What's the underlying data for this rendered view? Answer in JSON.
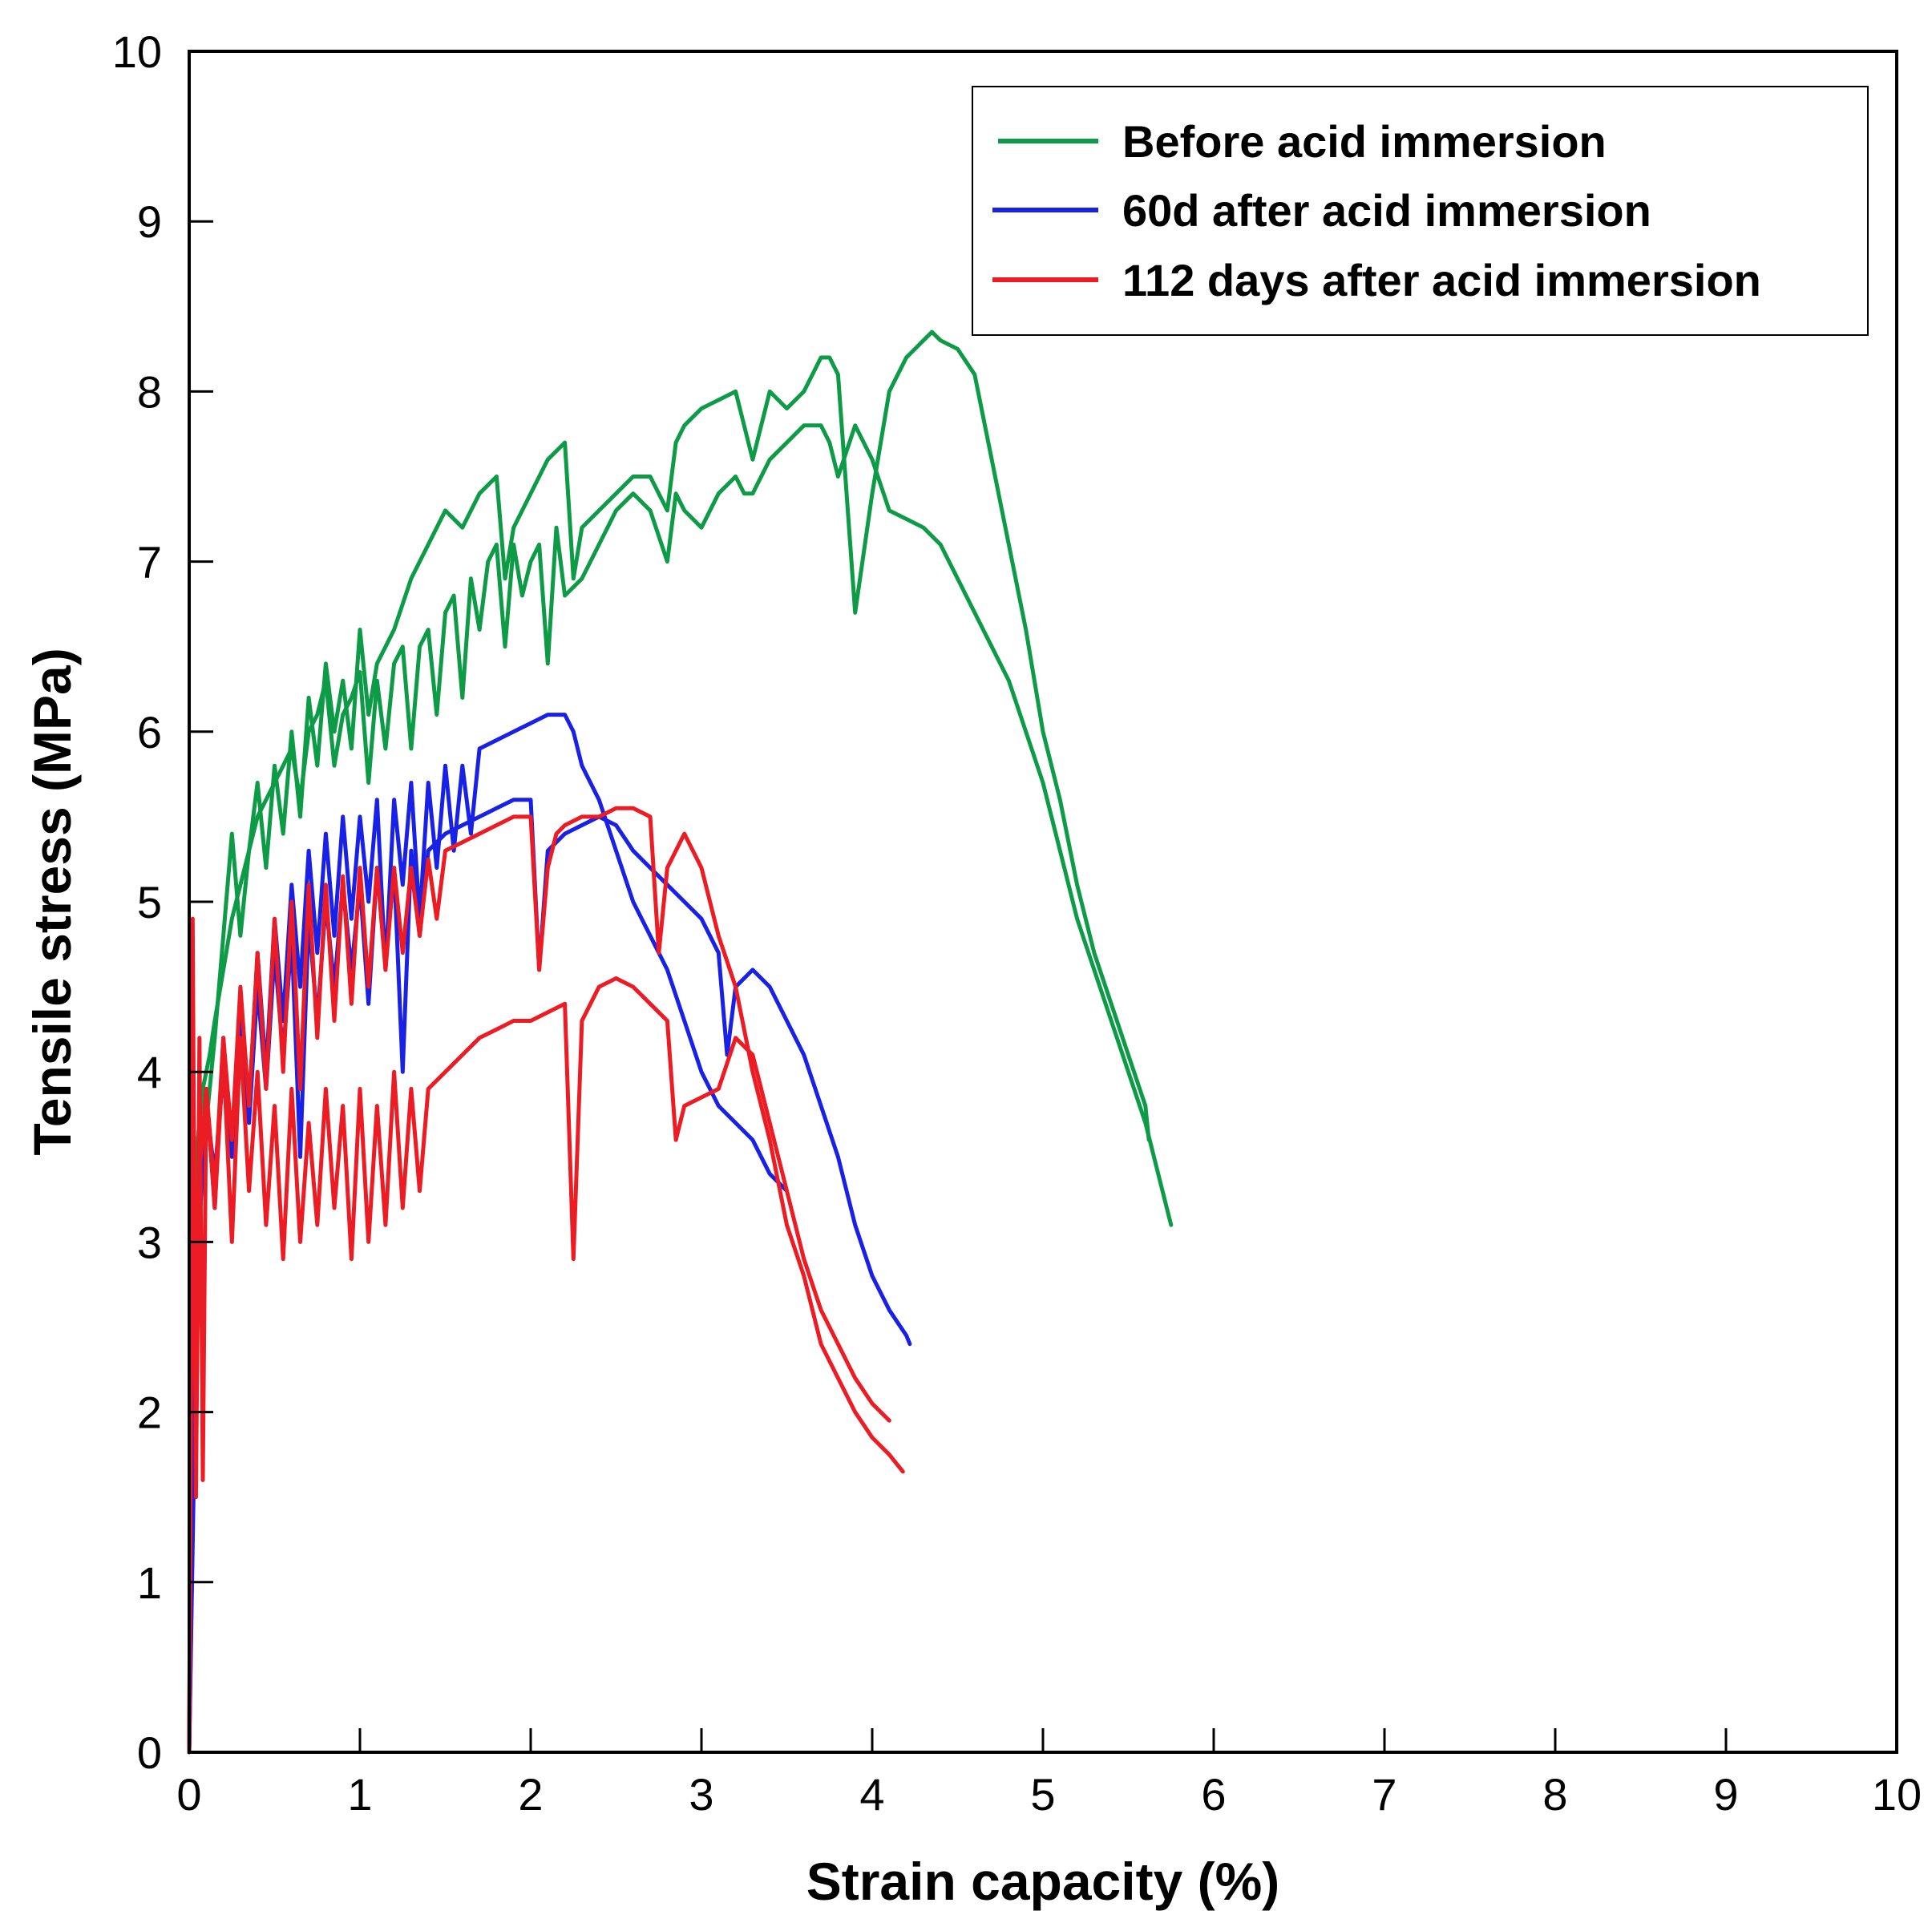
{
  "chart_data": {
    "type": "line",
    "title": "",
    "xlabel": "Strain capacity (%)",
    "ylabel": "Tensile stress (MPa)",
    "xlim": [
      0,
      10
    ],
    "ylim": [
      0,
      10
    ],
    "xticks": [
      "0",
      "1",
      "2",
      "3",
      "4",
      "5",
      "6",
      "7",
      "8",
      "9",
      "10"
    ],
    "yticks": [
      "0",
      "1",
      "2",
      "3",
      "4",
      "5",
      "6",
      "7",
      "8",
      "9",
      "10"
    ],
    "grid": false,
    "legend_position": "top-right",
    "series": [
      {
        "name": "Before acid immersion",
        "group": 0,
        "color": "#0e9b47",
        "x": [
          0.0,
          0.02,
          0.05,
          0.08,
          0.12,
          0.15,
          0.2,
          0.25,
          0.3,
          0.35,
          0.4,
          0.45,
          0.5,
          0.55,
          0.6,
          0.65,
          0.7,
          0.75,
          0.8,
          0.85,
          0.9,
          0.95,
          1.0,
          1.05,
          1.1,
          1.15,
          1.2,
          1.25,
          1.3,
          1.35,
          1.4,
          1.45,
          1.5,
          1.55,
          1.6,
          1.65,
          1.7,
          1.75,
          1.8,
          1.85,
          1.9,
          1.95,
          2.0,
          2.05,
          2.1,
          2.15,
          2.2,
          2.3,
          2.4,
          2.5,
          2.6,
          2.7,
          2.8,
          2.85,
          2.9,
          3.0,
          3.1,
          3.2,
          3.25,
          3.3,
          3.4,
          3.5,
          3.6,
          3.7,
          3.75,
          3.8,
          3.9,
          4.0,
          4.1,
          4.2,
          4.3,
          4.4,
          4.5,
          4.6,
          4.7,
          4.8,
          4.9,
          5.0,
          5.1,
          5.2,
          5.3,
          5.4,
          5.5,
          5.6,
          5.7,
          5.75
        ],
        "y": [
          0.0,
          2.5,
          3.6,
          3.9,
          4.1,
          4.3,
          4.6,
          4.9,
          5.1,
          5.3,
          5.5,
          5.6,
          5.7,
          5.8,
          5.9,
          5.6,
          6.0,
          6.1,
          6.3,
          5.8,
          6.1,
          6.2,
          6.35,
          5.7,
          6.3,
          5.9,
          6.4,
          6.5,
          5.9,
          6.5,
          6.6,
          6.1,
          6.7,
          6.8,
          6.2,
          6.9,
          6.6,
          7.0,
          7.1,
          6.5,
          7.1,
          6.8,
          7.0,
          7.1,
          6.4,
          7.2,
          6.8,
          6.9,
          7.1,
          7.3,
          7.4,
          7.3,
          7.0,
          7.4,
          7.3,
          7.2,
          7.4,
          7.5,
          7.4,
          7.4,
          7.6,
          7.7,
          7.8,
          7.8,
          7.7,
          7.5,
          7.8,
          7.6,
          7.3,
          7.25,
          7.2,
          7.1,
          6.9,
          6.7,
          6.5,
          6.3,
          6.0,
          5.7,
          5.3,
          4.9,
          4.6,
          4.3,
          4.0,
          3.7,
          3.3,
          3.1
        ]
      },
      {
        "name": "Before acid immersion",
        "group": 0,
        "color": "#0e9b47",
        "x": [
          0.0,
          0.05,
          0.1,
          0.15,
          0.2,
          0.25,
          0.3,
          0.35,
          0.4,
          0.45,
          0.5,
          0.55,
          0.6,
          0.65,
          0.7,
          0.75,
          0.8,
          0.85,
          0.9,
          0.95,
          1.0,
          1.05,
          1.1,
          1.2,
          1.3,
          1.4,
          1.5,
          1.6,
          1.7,
          1.8,
          1.85,
          1.9,
          2.0,
          2.1,
          2.2,
          2.25,
          2.3,
          2.4,
          2.5,
          2.6,
          2.7,
          2.8,
          2.85,
          2.9,
          3.0,
          3.1,
          3.2,
          3.3,
          3.4,
          3.5,
          3.6,
          3.7,
          3.75,
          3.8,
          3.9,
          4.0,
          4.1,
          4.2,
          4.3,
          4.35,
          4.4,
          4.5,
          4.6,
          4.7,
          4.8,
          4.9,
          5.0,
          5.1,
          5.2,
          5.3,
          5.4,
          5.5,
          5.6,
          5.62
        ],
        "y": [
          0.0,
          3.3,
          3.7,
          4.2,
          4.8,
          5.4,
          4.8,
          5.3,
          5.7,
          5.2,
          5.8,
          5.4,
          6.0,
          5.5,
          6.2,
          5.8,
          6.4,
          6.0,
          6.3,
          5.9,
          6.6,
          6.1,
          6.4,
          6.6,
          6.9,
          7.1,
          7.3,
          7.2,
          7.4,
          7.5,
          6.9,
          7.2,
          7.4,
          7.6,
          7.7,
          6.9,
          7.2,
          7.3,
          7.4,
          7.5,
          7.5,
          7.3,
          7.7,
          7.8,
          7.9,
          7.95,
          8.0,
          7.6,
          8.0,
          7.9,
          8.0,
          8.2,
          8.2,
          8.1,
          6.7,
          7.4,
          8.0,
          8.2,
          8.3,
          8.35,
          8.3,
          8.25,
          8.1,
          7.6,
          7.1,
          6.6,
          6.0,
          5.6,
          5.1,
          4.7,
          4.4,
          4.1,
          3.8,
          3.6
        ]
      },
      {
        "name": "60d after acid immersion",
        "group": 1,
        "color": "#1a21e6",
        "x": [
          0.0,
          0.03,
          0.06,
          0.1,
          0.15,
          0.2,
          0.25,
          0.3,
          0.35,
          0.4,
          0.45,
          0.5,
          0.55,
          0.6,
          0.65,
          0.7,
          0.75,
          0.8,
          0.85,
          0.9,
          0.95,
          1.0,
          1.05,
          1.1,
          1.15,
          1.2,
          1.25,
          1.3,
          1.35,
          1.4,
          1.45,
          1.5,
          1.55,
          1.6,
          1.65,
          1.7,
          1.8,
          1.9,
          2.0,
          2.1,
          2.15,
          2.2,
          2.25,
          2.3,
          2.4,
          2.5,
          2.6,
          2.7,
          2.8,
          2.9,
          3.0,
          3.1,
          3.2,
          3.3,
          3.4,
          3.5
        ],
        "y": [
          0.0,
          1.8,
          3.3,
          3.9,
          3.2,
          4.2,
          3.5,
          4.4,
          3.8,
          4.7,
          4.0,
          4.9,
          4.3,
          5.1,
          4.5,
          5.3,
          4.7,
          5.4,
          4.8,
          5.5,
          4.9,
          5.5,
          5.0,
          5.6,
          4.6,
          5.6,
          5.1,
          5.7,
          4.9,
          5.7,
          5.2,
          5.8,
          5.3,
          5.8,
          5.4,
          5.9,
          5.95,
          6.0,
          6.05,
          6.1,
          6.1,
          6.1,
          6.0,
          5.8,
          5.6,
          5.3,
          5.0,
          4.8,
          4.6,
          4.3,
          4.0,
          3.8,
          3.7,
          3.6,
          3.4,
          3.3
        ]
      },
      {
        "name": "60d after acid immersion",
        "group": 1,
        "color": "#1a21e6",
        "x": [
          0.0,
          0.03,
          0.06,
          0.1,
          0.15,
          0.2,
          0.25,
          0.3,
          0.35,
          0.4,
          0.45,
          0.5,
          0.55,
          0.6,
          0.65,
          0.7,
          0.75,
          0.8,
          0.85,
          0.9,
          0.95,
          1.0,
          1.05,
          1.1,
          1.15,
          1.2,
          1.25,
          1.3,
          1.35,
          1.4,
          1.5,
          1.6,
          1.7,
          1.8,
          1.9,
          2.0,
          2.05,
          2.1,
          2.2,
          2.3,
          2.4,
          2.5,
          2.6,
          2.7,
          2.8,
          2.9,
          3.0,
          3.1,
          3.15,
          3.2,
          3.3,
          3.4,
          3.5,
          3.6,
          3.7,
          3.8,
          3.9,
          4.0,
          4.1,
          4.2,
          4.22
        ],
        "y": [
          0.0,
          2.3,
          3.1,
          3.8,
          3.4,
          4.0,
          3.6,
          4.3,
          3.7,
          4.5,
          3.9,
          4.7,
          4.1,
          4.8,
          3.5,
          4.9,
          4.3,
          5.0,
          4.5,
          5.1,
          4.6,
          5.1,
          4.4,
          5.2,
          4.7,
          5.2,
          4.0,
          5.3,
          4.8,
          5.3,
          5.4,
          5.45,
          5.5,
          5.55,
          5.6,
          5.6,
          4.6,
          5.3,
          5.4,
          5.45,
          5.5,
          5.45,
          5.3,
          5.2,
          5.1,
          5.0,
          4.9,
          4.7,
          4.1,
          4.5,
          4.6,
          4.5,
          4.3,
          4.1,
          3.8,
          3.5,
          3.1,
          2.8,
          2.6,
          2.45,
          2.4
        ]
      },
      {
        "name": "112 days after acid immersion",
        "group": 2,
        "color": "#ec1c24",
        "x": [
          0.0,
          0.02,
          0.04,
          0.06,
          0.08,
          0.1,
          0.15,
          0.2,
          0.25,
          0.3,
          0.35,
          0.4,
          0.45,
          0.5,
          0.55,
          0.6,
          0.65,
          0.7,
          0.75,
          0.8,
          0.85,
          0.9,
          0.95,
          1.0,
          1.05,
          1.1,
          1.15,
          1.2,
          1.25,
          1.3,
          1.35,
          1.4,
          1.45,
          1.5,
          1.6,
          1.7,
          1.8,
          1.9,
          2.0,
          2.05,
          2.1,
          2.15,
          2.2,
          2.3,
          2.4,
          2.5,
          2.6,
          2.7,
          2.75,
          2.8,
          2.9,
          3.0,
          3.1,
          3.2,
          3.3,
          3.4,
          3.5,
          3.6,
          3.7,
          3.8,
          3.9,
          4.0,
          4.1,
          4.18
        ],
        "y": [
          0.0,
          4.9,
          1.5,
          4.2,
          1.6,
          3.9,
          3.3,
          4.2,
          3.6,
          4.5,
          3.8,
          4.7,
          3.9,
          4.9,
          4.0,
          5.0,
          3.9,
          5.1,
          4.2,
          5.1,
          4.3,
          5.15,
          4.4,
          5.2,
          4.5,
          5.2,
          4.6,
          5.2,
          4.7,
          5.2,
          4.8,
          5.25,
          4.9,
          5.3,
          5.35,
          5.4,
          5.45,
          5.5,
          5.5,
          4.6,
          5.2,
          5.4,
          5.45,
          5.5,
          5.5,
          5.55,
          5.55,
          5.5,
          4.7,
          5.2,
          5.4,
          5.2,
          4.8,
          4.5,
          4.0,
          3.6,
          3.1,
          2.8,
          2.4,
          2.2,
          2.0,
          1.85,
          1.75,
          1.65
        ]
      },
      {
        "name": "112 days after acid immersion",
        "group": 2,
        "color": "#ec1c24",
        "x": [
          0.0,
          0.02,
          0.04,
          0.06,
          0.1,
          0.15,
          0.2,
          0.25,
          0.3,
          0.35,
          0.4,
          0.45,
          0.5,
          0.55,
          0.6,
          0.65,
          0.7,
          0.75,
          0.8,
          0.85,
          0.9,
          0.95,
          1.0,
          1.05,
          1.1,
          1.15,
          1.2,
          1.25,
          1.3,
          1.35,
          1.4,
          1.5,
          1.6,
          1.7,
          1.8,
          1.9,
          2.0,
          2.1,
          2.2,
          2.25,
          2.3,
          2.4,
          2.5,
          2.6,
          2.7,
          2.8,
          2.85,
          2.9,
          3.0,
          3.1,
          3.2,
          3.3,
          3.4,
          3.5,
          3.6,
          3.7,
          3.8,
          3.9,
          4.0,
          4.1
        ],
        "y": [
          0.0,
          4.0,
          1.8,
          3.4,
          3.9,
          3.2,
          4.1,
          3.0,
          4.2,
          3.3,
          4.0,
          3.1,
          3.8,
          2.9,
          3.9,
          3.0,
          3.7,
          3.1,
          3.9,
          3.2,
          3.8,
          2.9,
          3.9,
          3.0,
          3.8,
          3.1,
          4.0,
          3.2,
          3.9,
          3.3,
          3.9,
          4.0,
          4.1,
          4.2,
          4.25,
          4.3,
          4.3,
          4.35,
          4.4,
          2.9,
          4.3,
          4.5,
          4.55,
          4.5,
          4.4,
          4.3,
          3.6,
          3.8,
          3.85,
          3.9,
          4.2,
          4.1,
          3.7,
          3.3,
          2.9,
          2.6,
          2.4,
          2.2,
          2.05,
          1.95
        ]
      }
    ]
  },
  "legend": {
    "entries": [
      {
        "label": "Before acid immersion",
        "color": "#0e9b47"
      },
      {
        "label": "60d after acid immersion",
        "color": "#1a21e6"
      },
      {
        "label": "112 days after acid immersion",
        "color": "#ec1c24"
      }
    ]
  }
}
